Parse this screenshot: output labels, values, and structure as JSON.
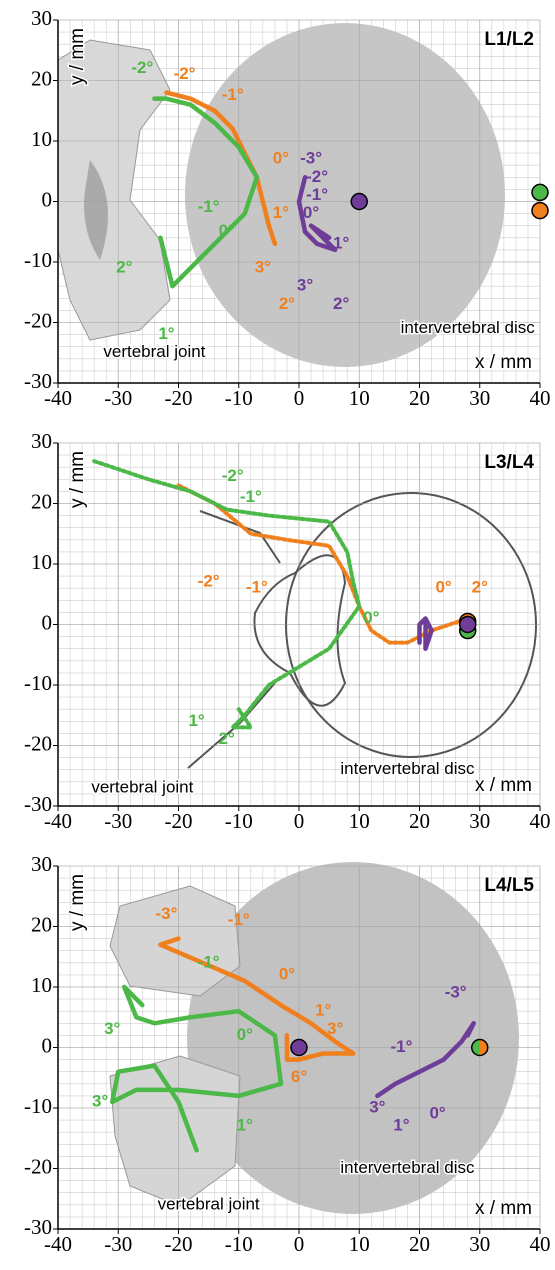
{
  "chart_data": [
    {
      "type": "line",
      "title": "L1/L2",
      "xlabel": "x / mm",
      "ylabel": "y / mm",
      "xlim": [
        -40,
        40
      ],
      "ylim": [
        -30,
        30
      ],
      "xticks": [
        -40,
        -30,
        -20,
        -10,
        0,
        10,
        20,
        30,
        40
      ],
      "yticks": [
        -30,
        -20,
        -10,
        0,
        10,
        20,
        30
      ],
      "grid": true,
      "minor_step": 2,
      "series": [
        {
          "color": "#f07f1e",
          "x": [
            -22,
            -18,
            -14,
            -11,
            -9,
            -7,
            -6,
            -5,
            -4
          ],
          "y": [
            18,
            17,
            15,
            12,
            8,
            4,
            0,
            -4,
            -7
          ]
        },
        {
          "color": "#4cb848",
          "x": [
            -24,
            -22,
            -18,
            -14,
            -10,
            -7,
            -9,
            -13,
            -17,
            -21,
            -22,
            -23
          ],
          "y": [
            17,
            17,
            16,
            13,
            9,
            4,
            -2,
            -6,
            -10,
            -14,
            -10,
            -6
          ]
        },
        {
          "color": "#6f3c97",
          "x": [
            1,
            0,
            1,
            3,
            6,
            2,
            5
          ],
          "y": [
            4,
            0,
            -5,
            -7,
            -8,
            -4,
            -6
          ]
        }
      ],
      "points": [
        {
          "x": 10,
          "y": 0,
          "colors": [
            "#6f3c97"
          ]
        },
        {
          "x": 40,
          "y": 1.5,
          "colors": [
            "#4cb848"
          ]
        },
        {
          "x": 40,
          "y": -1.5,
          "colors": [
            "#f07f1e"
          ]
        }
      ],
      "annotations": [
        {
          "text": "-2°",
          "color": "#4cb848"
        },
        {
          "text": "-2°",
          "color": "#f07f1e"
        },
        {
          "text": "-1°",
          "color": "#f07f1e"
        },
        {
          "text": "-1°",
          "color": "#4cb848"
        },
        {
          "text": "0°",
          "color": "#4cb848"
        },
        {
          "text": "0°",
          "color": "#f07f1e"
        },
        {
          "text": "1°",
          "color": "#f07f1e"
        },
        {
          "text": "3°",
          "color": "#f07f1e"
        },
        {
          "text": "2°",
          "color": "#f07f1e"
        },
        {
          "text": "2°",
          "color": "#4cb848"
        },
        {
          "text": "1°",
          "color": "#4cb848"
        },
        {
          "text": "-3°",
          "color": "#6f3c97"
        },
        {
          "text": "-2°",
          "color": "#6f3c97"
        },
        {
          "text": "-1°",
          "color": "#6f3c97"
        },
        {
          "text": "0°",
          "color": "#6f3c97"
        },
        {
          "text": "1°",
          "color": "#6f3c97"
        },
        {
          "text": "3°",
          "color": "#6f3c97"
        },
        {
          "text": "2°",
          "color": "#6f3c97"
        },
        {
          "text": "vertebral joint",
          "color": "#000000"
        },
        {
          "text": "intervertebral disc",
          "color": "#000000"
        }
      ]
    },
    {
      "type": "line",
      "title": "L3/L4",
      "xlabel": "x / mm",
      "ylabel": "y / mm",
      "xlim": [
        -40,
        40
      ],
      "ylim": [
        -30,
        30
      ],
      "xticks": [
        -40,
        -30,
        -20,
        -10,
        0,
        10,
        20,
        30,
        40
      ],
      "yticks": [
        -30,
        -20,
        -10,
        0,
        10,
        20,
        30
      ],
      "grid": true,
      "minor_step": 2,
      "series": [
        {
          "color": "#f07f1e",
          "style": "dotted",
          "x": [
            -20,
            -14,
            -8,
            -2,
            5,
            8,
            10,
            12,
            15,
            18,
            22,
            28
          ],
          "y": [
            23,
            20,
            15,
            14,
            13,
            8,
            3,
            -1,
            -3,
            -3,
            -1,
            1
          ]
        },
        {
          "color": "#4cb848",
          "style": "dotted",
          "x": [
            -34,
            -25,
            -18,
            -12,
            -5,
            5,
            8,
            9,
            10,
            5,
            0,
            -5,
            -9,
            -11,
            -8,
            -10
          ],
          "y": [
            27,
            24,
            22,
            19,
            18,
            17,
            12,
            7,
            3,
            -4,
            -7,
            -10,
            -15,
            -17,
            -17,
            -14
          ]
        },
        {
          "color": "#6f3c97",
          "x": [
            20,
            20,
            21,
            22,
            21,
            21
          ],
          "y": [
            -3,
            0,
            1,
            -1,
            -4,
            0
          ]
        }
      ],
      "points": [
        {
          "x": 28,
          "y": -1,
          "colors": [
            "#4cb848"
          ]
        },
        {
          "x": 28,
          "y": 0.5,
          "colors": [
            "#f07f1e"
          ]
        },
        {
          "x": 28,
          "y": 0,
          "colors": [
            "#6f3c97"
          ]
        }
      ],
      "annotations": [
        {
          "text": "-2°",
          "color": "#4cb848"
        },
        {
          "text": "-1°",
          "color": "#4cb848"
        },
        {
          "text": "-2°",
          "color": "#f07f1e"
        },
        {
          "text": "-1°",
          "color": "#f07f1e"
        },
        {
          "text": "0°",
          "color": "#4cb848"
        },
        {
          "text": "0°",
          "color": "#f07f1e"
        },
        {
          "text": "2°",
          "color": "#f07f1e"
        },
        {
          "text": "1°",
          "color": "#4cb848"
        },
        {
          "text": "2°",
          "color": "#4cb848"
        },
        {
          "text": "vertebral joint",
          "color": "#000000"
        },
        {
          "text": "intervertebral disc",
          "color": "#000000"
        }
      ]
    },
    {
      "type": "line",
      "title": "L4/L5",
      "xlabel": "x / mm",
      "ylabel": "y / mm",
      "xlim": [
        -40,
        40
      ],
      "ylim": [
        -30,
        30
      ],
      "xticks": [
        -40,
        -30,
        -20,
        -10,
        0,
        10,
        20,
        30,
        40
      ],
      "yticks": [
        -30,
        -20,
        -10,
        0,
        10,
        20,
        30
      ],
      "grid": true,
      "minor_step": 2,
      "series": [
        {
          "color": "#f07f1e",
          "x": [
            -20,
            -23,
            -16,
            -9,
            -3,
            2,
            6,
            9,
            4,
            0,
            -2,
            -2
          ],
          "y": [
            18,
            17,
            14,
            11,
            7,
            4,
            1,
            -1,
            -1,
            -2,
            -2,
            2
          ]
        },
        {
          "color": "#4cb848",
          "x": [
            -26,
            -29,
            -27,
            -24,
            -18,
            -10,
            -4,
            -3,
            -10,
            -20,
            -27,
            -31,
            -30,
            -24,
            -20,
            -17
          ],
          "y": [
            7,
            10,
            5,
            4,
            5,
            6,
            2,
            -6,
            -8,
            -7,
            -7,
            -9,
            -4,
            -3,
            -9,
            -17
          ]
        },
        {
          "color": "#6f3c97",
          "x": [
            28,
            29,
            27,
            24,
            20,
            16,
            13
          ],
          "y": [
            2,
            4,
            1,
            -2,
            -4,
            -6,
            -8
          ]
        }
      ],
      "points": [
        {
          "x": 0,
          "y": 0,
          "colors": [
            "#6f3c97"
          ]
        },
        {
          "x": 30,
          "y": 0,
          "colors": [
            "#4cb848",
            "#f07f1e"
          ]
        }
      ],
      "annotations": [
        {
          "text": "-3°",
          "color": "#f07f1e"
        },
        {
          "text": "-1°",
          "color": "#f07f1e"
        },
        {
          "text": "0°",
          "color": "#f07f1e"
        },
        {
          "text": "1°",
          "color": "#f07f1e"
        },
        {
          "text": "3°",
          "color": "#f07f1e"
        },
        {
          "text": "6°",
          "color": "#f07f1e"
        },
        {
          "text": "-1°",
          "color": "#4cb848"
        },
        {
          "text": "3°",
          "color": "#4cb848"
        },
        {
          "text": "3°",
          "color": "#4cb848"
        },
        {
          "text": "0°",
          "color": "#4cb848"
        },
        {
          "text": "1°",
          "color": "#4cb848"
        },
        {
          "text": "-3°",
          "color": "#6f3c97"
        },
        {
          "text": "-1°",
          "color": "#6f3c97"
        },
        {
          "text": "3°",
          "color": "#6f3c97"
        },
        {
          "text": "1°",
          "color": "#6f3c97"
        },
        {
          "text": "0°",
          "color": "#6f3c97"
        },
        {
          "text": "vertebral joint",
          "color": "#000000"
        },
        {
          "text": "intervertebral disc",
          "color": "#000000"
        }
      ]
    }
  ]
}
